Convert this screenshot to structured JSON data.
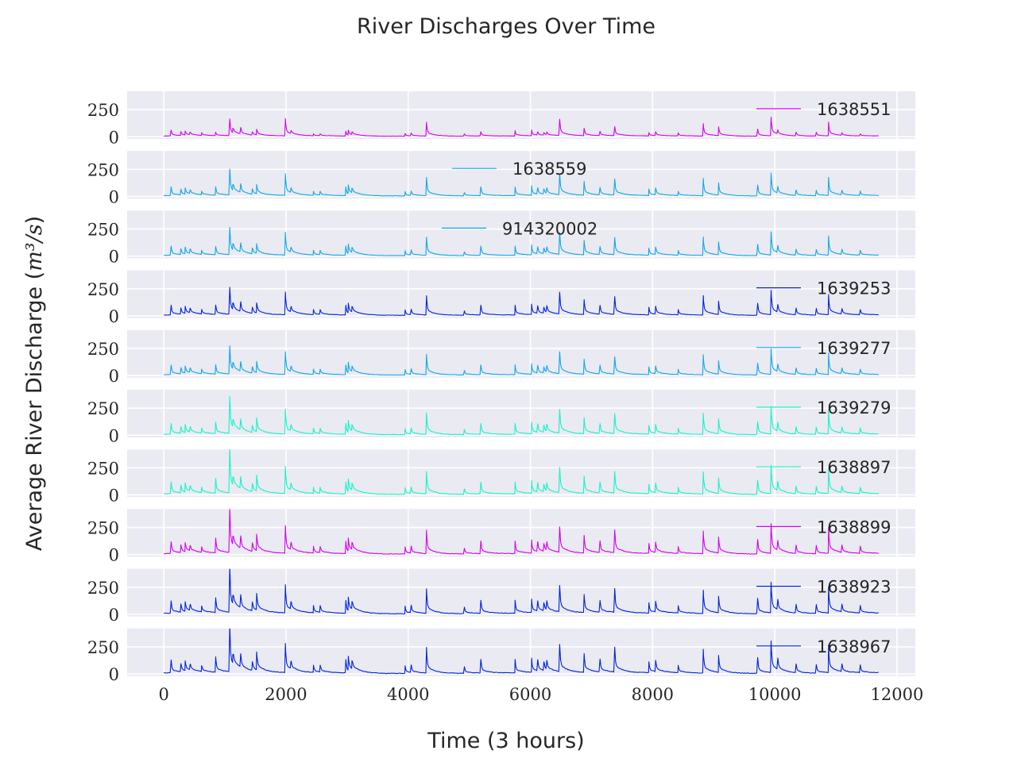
{
  "chart_data": {
    "type": "line",
    "title": "River Discharges Over Time",
    "xlabel": "Time (3 hours)",
    "ylabel_text": "Average River Discharge (",
    "ylabel_math": "m³/s",
    "ylabel_close": ")",
    "xlim": [
      -600,
      12300
    ],
    "ylim": [
      -20,
      420
    ],
    "x_ticks": [
      0,
      2000,
      4000,
      6000,
      8000,
      10000,
      12000
    ],
    "y_ticks": [
      0,
      250
    ],
    "x_max": 11700,
    "grid": true,
    "layout": "10 stacked panels sharing x axis",
    "background": "#eaeaf2",
    "spike_times": [
      120,
      280,
      350,
      430,
      620,
      850,
      1080,
      1130,
      1260,
      1450,
      1520,
      1990,
      2080,
      2450,
      2560,
      2980,
      3020,
      3080,
      3950,
      4050,
      4300,
      4920,
      5190,
      5750,
      6020,
      6120,
      6220,
      6270,
      6480,
      6880,
      7140,
      7380,
      7940,
      8050,
      8420,
      8830,
      9080,
      9720,
      9940,
      10050,
      10350,
      10680,
      10880,
      11100,
      11400
    ],
    "series": [
      {
        "name": "1638551",
        "color": "#d400f0",
        "legend_pos": "right",
        "peaks": [
          55,
          40,
          45,
          35,
          30,
          35,
          155,
          70,
          60,
          35,
          60,
          160,
          40,
          20,
          20,
          45,
          55,
          40,
          25,
          25,
          130,
          20,
          40,
          50,
          55,
          30,
          30,
          25,
          150,
          70,
          40,
          85,
          30,
          40,
          30,
          115,
          85,
          65,
          175,
          35,
          35,
          35,
          130,
          25,
          20
        ]
      },
      {
        "name": "1638559",
        "color": "#0ea8e6",
        "legend_pos": "center",
        "peaks": [
          80,
          60,
          70,
          50,
          40,
          80,
          240,
          100,
          80,
          60,
          100,
          200,
          60,
          40,
          40,
          80,
          100,
          70,
          40,
          40,
          170,
          30,
          80,
          80,
          90,
          60,
          60,
          50,
          190,
          130,
          70,
          150,
          60,
          70,
          40,
          160,
          120,
          100,
          210,
          60,
          50,
          50,
          170,
          40,
          40
        ]
      },
      {
        "name": "914320002",
        "color": "#0ea8e6",
        "legend_pos": "center",
        "peaks": [
          85,
          60,
          75,
          55,
          45,
          80,
          250,
          105,
          85,
          65,
          105,
          210,
          65,
          45,
          45,
          85,
          105,
          75,
          45,
          45,
          170,
          35,
          85,
          85,
          95,
          65,
          65,
          55,
          200,
          135,
          75,
          160,
          65,
          75,
          45,
          170,
          125,
          105,
          220,
          65,
          55,
          55,
          180,
          45,
          45
        ]
      },
      {
        "name": "1639253",
        "color": "#0022dd",
        "legend_pos": "right",
        "peaks": [
          90,
          65,
          80,
          60,
          50,
          90,
          250,
          110,
          90,
          70,
          110,
          210,
          70,
          50,
          50,
          90,
          110,
          80,
          50,
          50,
          180,
          40,
          90,
          90,
          100,
          70,
          70,
          60,
          200,
          140,
          80,
          165,
          70,
          80,
          50,
          180,
          130,
          110,
          230,
          70,
          60,
          60,
          190,
          50,
          50
        ]
      },
      {
        "name": "1639277",
        "color": "#0ea8e6",
        "legend_pos": "right",
        "peaks": [
          90,
          65,
          80,
          60,
          50,
          90,
          260,
          110,
          90,
          70,
          120,
          210,
          70,
          50,
          50,
          90,
          115,
          80,
          50,
          50,
          190,
          40,
          90,
          90,
          100,
          70,
          70,
          60,
          200,
          140,
          80,
          160,
          70,
          80,
          50,
          185,
          130,
          110,
          240,
          70,
          60,
          60,
          200,
          50,
          50
        ]
      },
      {
        "name": "1639279",
        "color": "#13f5c8",
        "legend_pos": "right",
        "peaks": [
          100,
          70,
          90,
          65,
          55,
          110,
          340,
          130,
          100,
          80,
          150,
          230,
          80,
          55,
          55,
          100,
          130,
          90,
          55,
          55,
          200,
          45,
          100,
          100,
          110,
          80,
          80,
          65,
          220,
          150,
          90,
          185,
          80,
          90,
          55,
          195,
          145,
          120,
          260,
          80,
          65,
          65,
          230,
          55,
          55
        ]
      },
      {
        "name": "1638897",
        "color": "#13f5c8",
        "legend_pos": "right",
        "peaks": [
          110,
          80,
          100,
          70,
          60,
          140,
          410,
          150,
          110,
          90,
          170,
          250,
          90,
          60,
          60,
          110,
          140,
          100,
          60,
          60,
          210,
          50,
          110,
          110,
          120,
          85,
          85,
          70,
          230,
          160,
          100,
          200,
          85,
          100,
          60,
          205,
          150,
          130,
          270,
          85,
          70,
          70,
          240,
          60,
          60
        ]
      },
      {
        "name": "1638899",
        "color": "#d400f0",
        "legend_pos": "right",
        "peaks": [
          110,
          80,
          100,
          70,
          60,
          140,
          410,
          155,
          115,
          95,
          175,
          255,
          95,
          65,
          65,
          115,
          145,
          105,
          65,
          65,
          220,
          55,
          115,
          115,
          125,
          90,
          90,
          75,
          235,
          165,
          105,
          210,
          90,
          105,
          65,
          210,
          155,
          135,
          280,
          90,
          75,
          75,
          245,
          65,
          65
        ]
      },
      {
        "name": "1638923",
        "color": "#0022dd",
        "legend_pos": "right",
        "peaks": [
          115,
          85,
          105,
          75,
          65,
          140,
          420,
          160,
          120,
          100,
          180,
          260,
          100,
          70,
          70,
          120,
          150,
          110,
          70,
          70,
          230,
          60,
          120,
          120,
          130,
          95,
          95,
          80,
          240,
          170,
          110,
          220,
          95,
          110,
          70,
          215,
          160,
          140,
          290,
          95,
          80,
          80,
          250,
          70,
          70
        ]
      },
      {
        "name": "1638967",
        "color": "#0022dd",
        "legend_pos": "right",
        "peaks": [
          120,
          85,
          110,
          75,
          65,
          145,
          430,
          165,
          125,
          100,
          190,
          270,
          100,
          70,
          70,
          125,
          155,
          115,
          70,
          70,
          240,
          60,
          125,
          125,
          135,
          100,
          100,
          80,
          250,
          175,
          115,
          230,
          100,
          115,
          70,
          220,
          165,
          145,
          300,
          100,
          80,
          80,
          260,
          70,
          70
        ]
      }
    ]
  }
}
